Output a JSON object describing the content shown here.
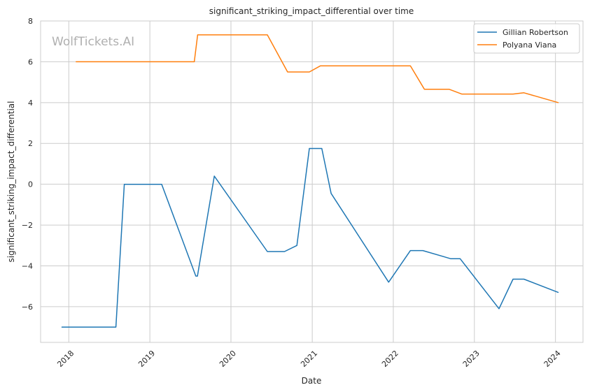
{
  "chart_data": {
    "type": "line",
    "title": "significant_striking_impact_differential over time",
    "xlabel": "Date",
    "ylabel": "significant_striking_impact_differential",
    "watermark": "WolfTickets.AI",
    "xlim": [
      "2017-08-27",
      "2024-05-04"
    ],
    "ylim": [
      -7.75,
      8.0
    ],
    "x_ticks": [
      {
        "date": "2018-01-01",
        "label": "2018"
      },
      {
        "date": "2019-01-01",
        "label": "2019"
      },
      {
        "date": "2020-01-01",
        "label": "2020"
      },
      {
        "date": "2021-01-01",
        "label": "2021"
      },
      {
        "date": "2022-01-01",
        "label": "2022"
      },
      {
        "date": "2023-01-01",
        "label": "2023"
      },
      {
        "date": "2024-01-01",
        "label": "2024"
      }
    ],
    "y_ticks": [
      {
        "value": -6,
        "label": "−6"
      },
      {
        "value": -4,
        "label": "−4"
      },
      {
        "value": -2,
        "label": "−2"
      },
      {
        "value": 0,
        "label": "0"
      },
      {
        "value": 2,
        "label": "2"
      },
      {
        "value": 4,
        "label": "4"
      },
      {
        "value": 6,
        "label": "6"
      },
      {
        "value": 8,
        "label": "8"
      }
    ],
    "grid": true,
    "legend_position": "top-right",
    "series": [
      {
        "name": "Gillian Robertson",
        "color": "#1f77b4",
        "points": [
          {
            "x": "2017-12-01",
            "y": -7.0
          },
          {
            "x": "2018-08-01",
            "y": -7.0
          },
          {
            "x": "2018-09-08",
            "y": 0.0
          },
          {
            "x": "2019-02-23",
            "y": 0.0
          },
          {
            "x": "2019-07-27",
            "y": -4.5
          },
          {
            "x": "2019-08-03",
            "y": -4.5
          },
          {
            "x": "2019-10-18",
            "y": 0.4
          },
          {
            "x": "2020-06-13",
            "y": -3.3
          },
          {
            "x": "2020-08-29",
            "y": -3.3
          },
          {
            "x": "2020-10-24",
            "y": -3.0
          },
          {
            "x": "2020-12-19",
            "y": 1.75
          },
          {
            "x": "2021-02-13",
            "y": 1.75
          },
          {
            "x": "2021-03-27",
            "y": -0.45
          },
          {
            "x": "2021-12-11",
            "y": -4.8
          },
          {
            "x": "2022-03-19",
            "y": -3.25
          },
          {
            "x": "2022-05-14",
            "y": -3.25
          },
          {
            "x": "2022-09-17",
            "y": -3.65
          },
          {
            "x": "2022-10-29",
            "y": -3.65
          },
          {
            "x": "2023-04-22",
            "y": -6.1
          },
          {
            "x": "2023-06-24",
            "y": -4.65
          },
          {
            "x": "2023-08-12",
            "y": -4.65
          },
          {
            "x": "2024-01-13",
            "y": -5.3
          }
        ]
      },
      {
        "name": "Polyana Viana",
        "color": "#ff7f0e",
        "points": [
          {
            "x": "2018-02-03",
            "y": 6.0
          },
          {
            "x": "2019-07-20",
            "y": 6.0
          },
          {
            "x": "2019-08-04",
            "y": 7.32
          },
          {
            "x": "2020-06-13",
            "y": 7.32
          },
          {
            "x": "2020-09-12",
            "y": 5.5
          },
          {
            "x": "2020-12-19",
            "y": 5.5
          },
          {
            "x": "2021-02-06",
            "y": 5.8
          },
          {
            "x": "2022-03-19",
            "y": 5.8
          },
          {
            "x": "2022-05-21",
            "y": 4.65
          },
          {
            "x": "2022-09-10",
            "y": 4.65
          },
          {
            "x": "2022-11-05",
            "y": 4.42
          },
          {
            "x": "2023-06-24",
            "y": 4.42
          },
          {
            "x": "2023-08-12",
            "y": 4.48
          },
          {
            "x": "2024-01-13",
            "y": 4.0
          }
        ]
      }
    ]
  }
}
